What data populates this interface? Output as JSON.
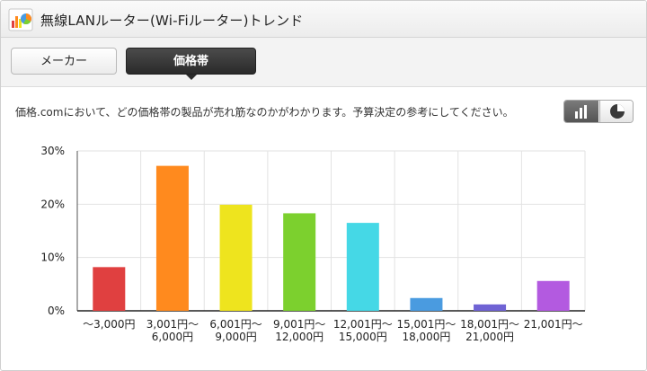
{
  "header": {
    "title": "無線LANルーター(Wi-Fiルーター)トレンド",
    "icon": "chart-app-icon"
  },
  "tabs": [
    {
      "label": "メーカー",
      "active": false
    },
    {
      "label": "価格帯",
      "active": true
    }
  ],
  "description": "価格.comにおいて、どの価格帯の製品が売れ筋なのかがわかります。予算決定の参考にしてください。",
  "view_toggle": {
    "options": [
      {
        "icon": "bar-chart-icon",
        "selected": true
      },
      {
        "icon": "pie-chart-icon",
        "selected": false
      }
    ]
  },
  "chart_data": {
    "type": "bar",
    "categories": [
      [
        "～3,000円"
      ],
      [
        "3,001円～",
        "6,000円"
      ],
      [
        "6,001円～",
        "9,000円"
      ],
      [
        "9,001円～",
        "12,000円"
      ],
      [
        "12,001円～",
        "15,000円"
      ],
      [
        "15,001円～",
        "18,000円"
      ],
      [
        "18,001円～",
        "21,000円"
      ],
      [
        "21,001円～"
      ]
    ],
    "values": [
      8.2,
      27.2,
      19.9,
      18.3,
      16.5,
      2.4,
      1.2,
      5.6
    ],
    "colors": [
      "#e04040",
      "#ff8a1e",
      "#eee41e",
      "#7cd02e",
      "#45d8e6",
      "#4a9be0",
      "#6f63d4",
      "#b35ae0"
    ],
    "ylim": [
      0,
      30
    ],
    "yticks": [
      0,
      10,
      20,
      30
    ],
    "ytick_labels": [
      "0%",
      "10%",
      "20%",
      "30%"
    ],
    "grid": true,
    "title": "",
    "xlabel": "",
    "ylabel": ""
  }
}
